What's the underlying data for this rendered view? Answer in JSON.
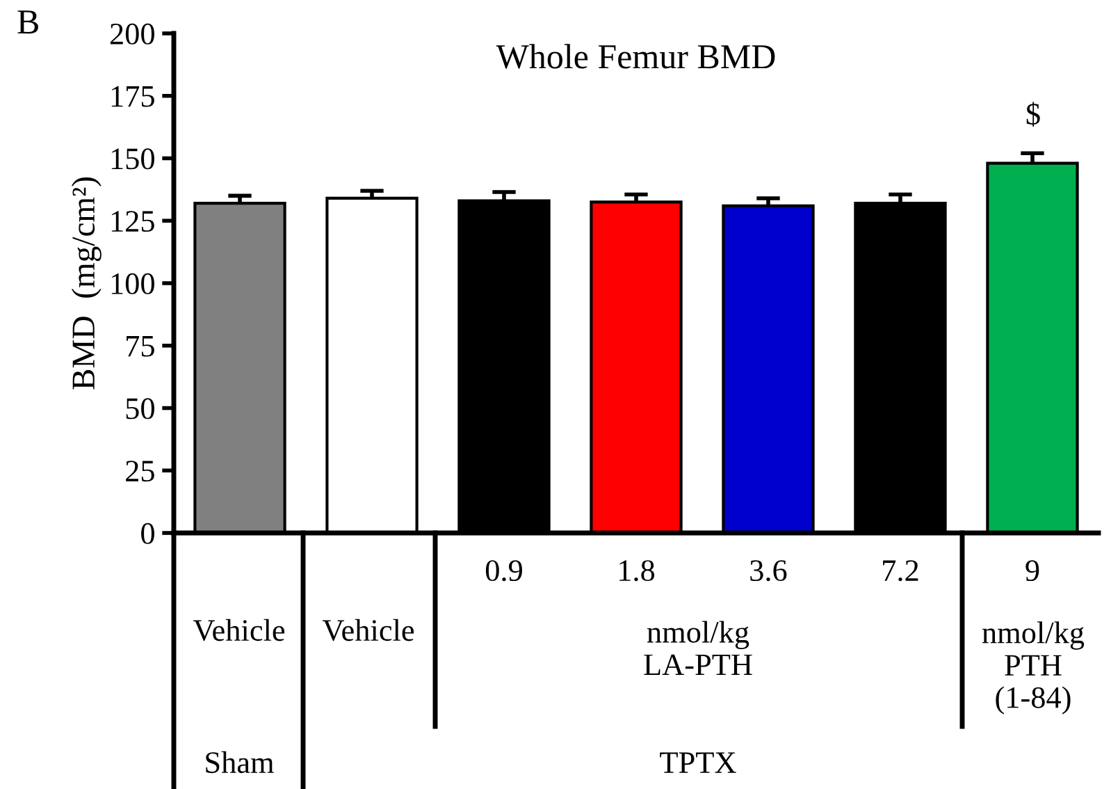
{
  "chart_data": {
    "type": "bar",
    "title": "Whole Femur BMD",
    "ylabel": "BMD  (mg/cm²)",
    "categories": [
      null,
      null,
      "0.9",
      "1.8",
      "3.6",
      "7.2",
      "9"
    ],
    "values": [
      132,
      134,
      133,
      132.5,
      131,
      132,
      148
    ],
    "errors": [
      3,
      3,
      3.5,
      3,
      3,
      3.5,
      4
    ],
    "colors": [
      "#808080",
      "#ffffff",
      "#000000",
      "#ff0000",
      "#0000cc",
      "#000000",
      "#00b050"
    ],
    "ylim": [
      0,
      200
    ],
    "yticks": [
      0,
      25,
      50,
      75,
      100,
      125,
      150,
      175,
      200
    ],
    "grid": false,
    "annotations": [
      "B",
      "$",
      "Vehicle",
      "Vehicle",
      "nmol/kg\nLA-PTH",
      "nmol/kg\nPTH\n(1-84)",
      "Sham",
      "TPTX"
    ]
  }
}
